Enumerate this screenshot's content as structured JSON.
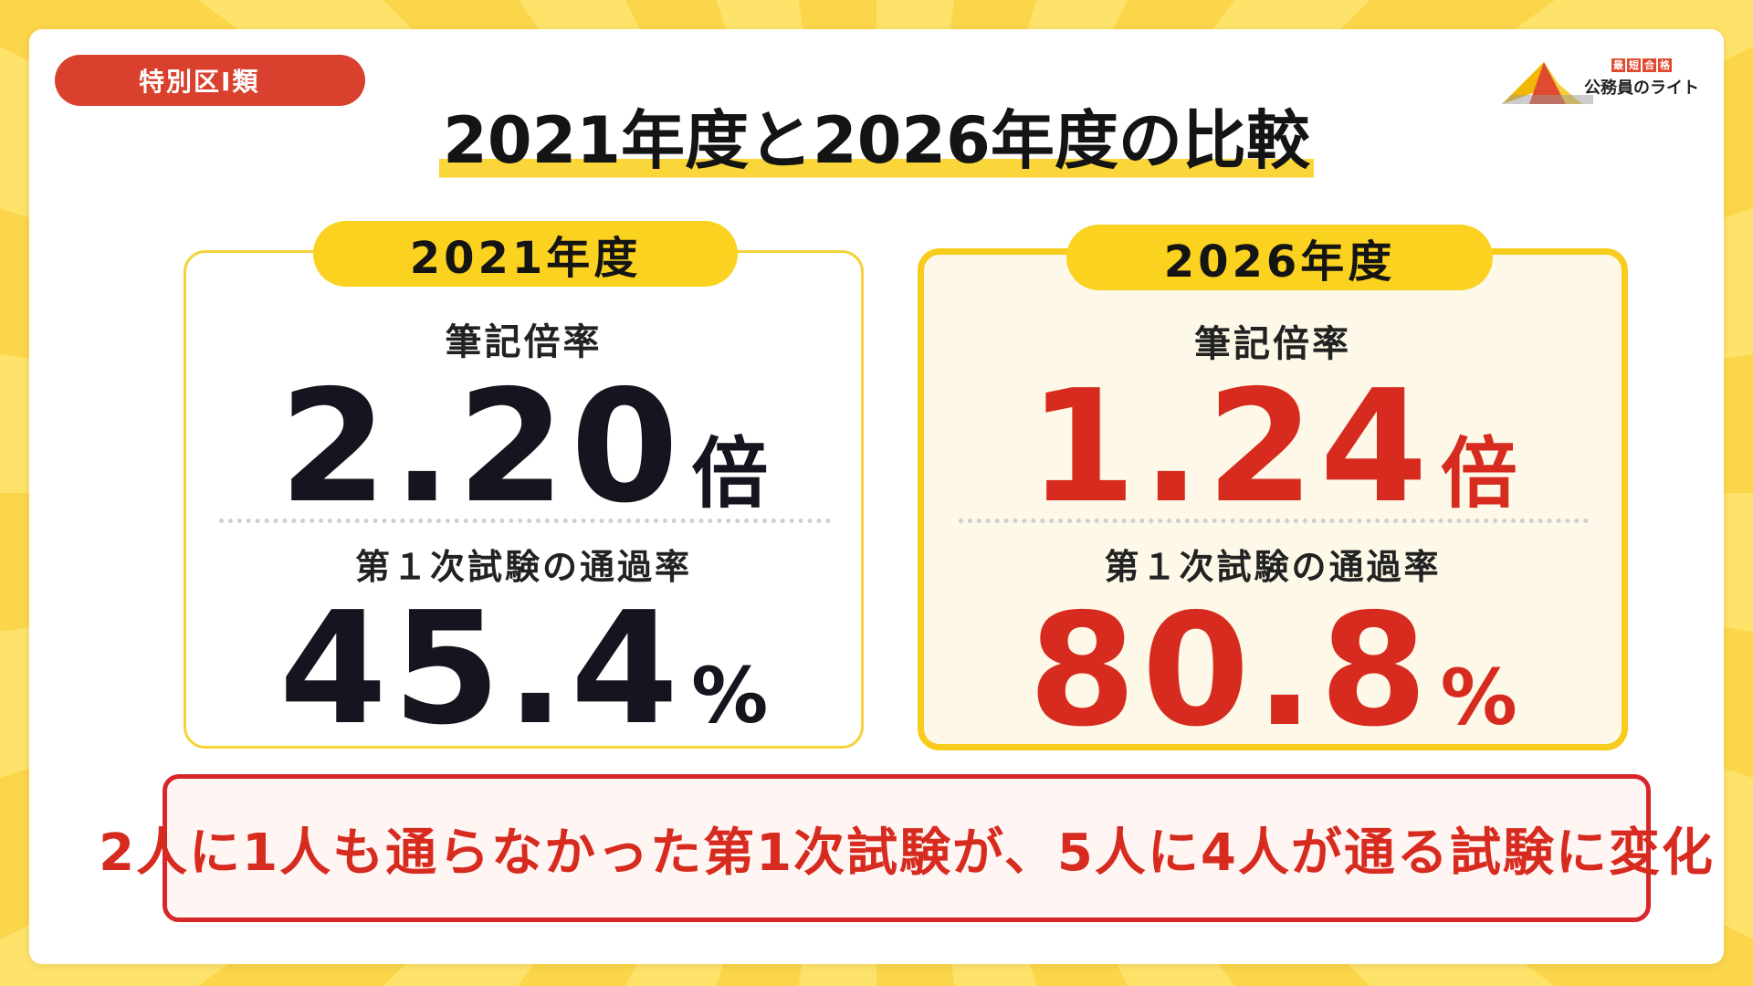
{
  "tag": "特別区Ⅰ類",
  "logo": {
    "badges": [
      "最",
      "短",
      "合",
      "格"
    ],
    "text": "公務員のライト"
  },
  "title": "2021年度と2026年度の比較",
  "left": {
    "year": "2021年度",
    "ratio_label": "筆記倍率",
    "ratio_value": "2.20",
    "ratio_unit": "倍",
    "pass_label": "第１次試験の通過率",
    "pass_value": "45.4",
    "pass_unit": "%"
  },
  "right": {
    "year": "2026年度",
    "ratio_label": "筆記倍率",
    "ratio_value": "1.24",
    "ratio_unit": "倍",
    "pass_label": "第１次試験の通過率",
    "pass_value": "80.8",
    "pass_unit": "%"
  },
  "summary": "2人に1人も通らなかった第1次試験が、5人に4人が通る試験に変化",
  "colors": {
    "accent_yellow": "#fad21f",
    "accent_red": "#d62b1e",
    "tag_red": "#d9412e"
  }
}
